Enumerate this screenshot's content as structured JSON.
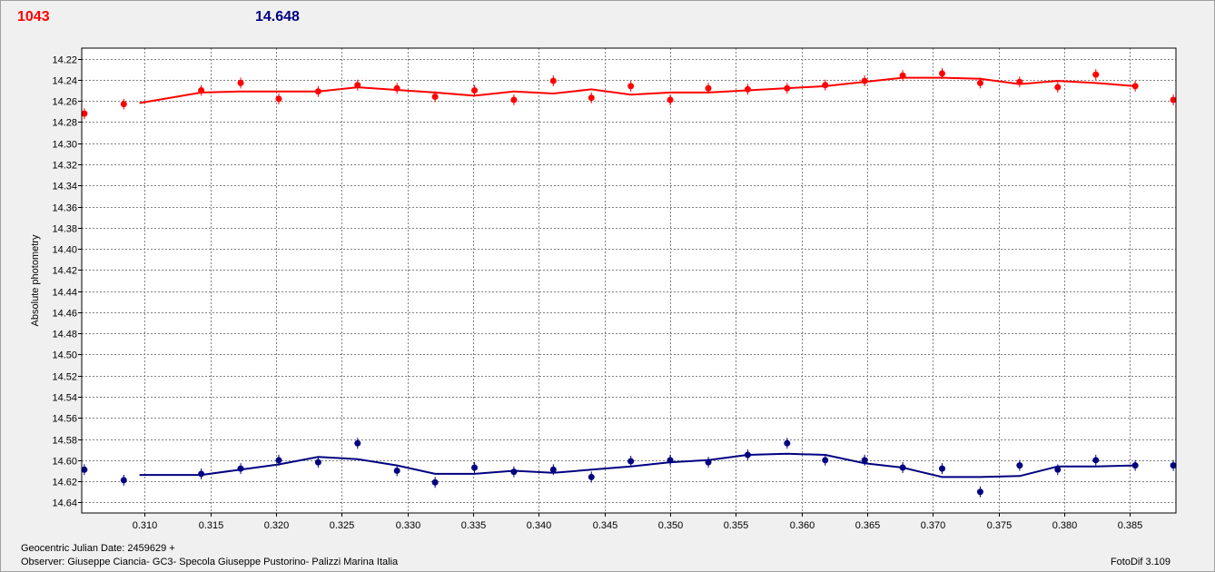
{
  "header": {
    "left_value": "1043",
    "right_value": "14.648"
  },
  "footer": {
    "date_label": "Geocentric Julian Date: 2459629 +",
    "observer": "Observer: Giuseppe Ciancia- GC3- Specola Giuseppe Pustorino- Palizzi Marina Italia",
    "software": "FotoDif 3.109"
  },
  "colors": {
    "series_red": "#ff0000",
    "series_blue": "#000080",
    "grid": "#808080",
    "plot_bg": "#ffffff"
  },
  "chart_data": {
    "type": "scatter",
    "ylabel": "Absolute photometry",
    "xlim": [
      0.3052,
      0.3885
    ],
    "ylim": [
      14.65,
      14.21
    ],
    "y_inverted": true,
    "grid": true,
    "x_ticks": [
      "0.310",
      "0.315",
      "0.320",
      "0.325",
      "0.330",
      "0.335",
      "0.340",
      "0.345",
      "0.350",
      "0.355",
      "0.360",
      "0.365",
      "0.370",
      "0.375",
      "0.380",
      "0.385"
    ],
    "y_ticks": [
      "14.22",
      "14.24",
      "14.26",
      "14.28",
      "14.30",
      "14.32",
      "14.34",
      "14.36",
      "14.38",
      "14.40",
      "14.42",
      "14.44",
      "14.46",
      "14.48",
      "14.50",
      "14.52",
      "14.54",
      "14.56",
      "14.58",
      "14.60",
      "14.62",
      "14.64"
    ],
    "series": [
      {
        "color": "#ff0000",
        "points": [
          [
            0.3054,
            14.272
          ],
          [
            0.3084,
            14.263
          ],
          [
            0.3143,
            14.25
          ],
          [
            0.3173,
            14.243
          ],
          [
            0.3202,
            14.258
          ],
          [
            0.3232,
            14.251
          ],
          [
            0.3262,
            14.245
          ],
          [
            0.3292,
            14.248
          ],
          [
            0.3321,
            14.256
          ],
          [
            0.3351,
            14.25
          ],
          [
            0.3381,
            14.259
          ],
          [
            0.3411,
            14.241
          ],
          [
            0.344,
            14.257
          ],
          [
            0.347,
            14.246
          ],
          [
            0.35,
            14.259
          ],
          [
            0.3529,
            14.248
          ],
          [
            0.3559,
            14.249
          ],
          [
            0.3589,
            14.248
          ],
          [
            0.3618,
            14.245
          ],
          [
            0.3648,
            14.241
          ],
          [
            0.3677,
            14.236
          ],
          [
            0.3707,
            14.234
          ],
          [
            0.3736,
            14.243
          ],
          [
            0.3766,
            14.242
          ],
          [
            0.3795,
            14.247
          ],
          [
            0.3824,
            14.235
          ],
          [
            0.3854,
            14.246
          ],
          [
            0.3883,
            14.259
          ]
        ],
        "fit": [
          [
            0.3096,
            14.262
          ],
          [
            0.3143,
            14.252
          ],
          [
            0.3173,
            14.251
          ],
          [
            0.3232,
            14.251
          ],
          [
            0.3262,
            14.247
          ],
          [
            0.3321,
            14.252
          ],
          [
            0.3351,
            14.255
          ],
          [
            0.3381,
            14.251
          ],
          [
            0.3411,
            14.253
          ],
          [
            0.344,
            14.249
          ],
          [
            0.347,
            14.254
          ],
          [
            0.35,
            14.252
          ],
          [
            0.3529,
            14.252
          ],
          [
            0.3559,
            14.25
          ],
          [
            0.3618,
            14.246
          ],
          [
            0.3677,
            14.238
          ],
          [
            0.3707,
            14.238
          ],
          [
            0.3736,
            14.239
          ],
          [
            0.3766,
            14.244
          ],
          [
            0.3795,
            14.241
          ],
          [
            0.3824,
            14.243
          ],
          [
            0.3854,
            14.246
          ]
        ]
      },
      {
        "color": "#000080",
        "points": [
          [
            0.3054,
            14.609
          ],
          [
            0.3084,
            14.619
          ],
          [
            0.3143,
            14.613
          ],
          [
            0.3173,
            14.608
          ],
          [
            0.3202,
            14.6
          ],
          [
            0.3232,
            14.602
          ],
          [
            0.3262,
            14.584
          ],
          [
            0.3292,
            14.61
          ],
          [
            0.3321,
            14.621
          ],
          [
            0.3351,
            14.607
          ],
          [
            0.3381,
            14.611
          ],
          [
            0.3411,
            14.609
          ],
          [
            0.344,
            14.616
          ],
          [
            0.347,
            14.601
          ],
          [
            0.35,
            14.6
          ],
          [
            0.3529,
            14.602
          ],
          [
            0.3559,
            14.595
          ],
          [
            0.3589,
            14.584
          ],
          [
            0.3618,
            14.6
          ],
          [
            0.3648,
            14.6
          ],
          [
            0.3677,
            14.607
          ],
          [
            0.3707,
            14.608
          ],
          [
            0.3736,
            14.63
          ],
          [
            0.3766,
            14.605
          ],
          [
            0.3795,
            14.609
          ],
          [
            0.3824,
            14.6
          ],
          [
            0.3854,
            14.605
          ],
          [
            0.3883,
            14.605
          ]
        ],
        "fit": [
          [
            0.3096,
            14.614
          ],
          [
            0.3143,
            14.614
          ],
          [
            0.3202,
            14.604
          ],
          [
            0.3232,
            14.597
          ],
          [
            0.3262,
            14.599
          ],
          [
            0.3292,
            14.605
          ],
          [
            0.3321,
            14.613
          ],
          [
            0.3351,
            14.613
          ],
          [
            0.3381,
            14.61
          ],
          [
            0.3411,
            14.612
          ],
          [
            0.344,
            14.609
          ],
          [
            0.347,
            14.606
          ],
          [
            0.35,
            14.602
          ],
          [
            0.3529,
            14.6
          ],
          [
            0.3559,
            14.595
          ],
          [
            0.3589,
            14.594
          ],
          [
            0.3618,
            14.595
          ],
          [
            0.3648,
            14.603
          ],
          [
            0.3677,
            14.607
          ],
          [
            0.3707,
            14.616
          ],
          [
            0.3736,
            14.616
          ],
          [
            0.3766,
            14.615
          ],
          [
            0.3795,
            14.606
          ],
          [
            0.3824,
            14.606
          ],
          [
            0.3854,
            14.605
          ]
        ]
      }
    ]
  }
}
